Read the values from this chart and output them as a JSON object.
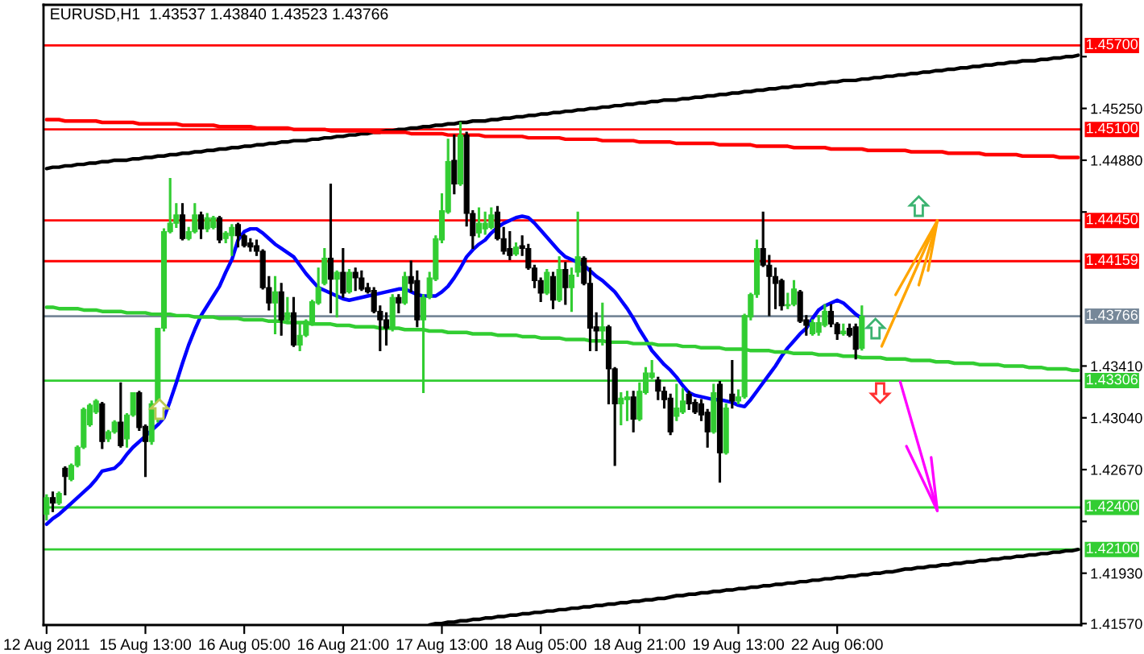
{
  "chart_data": {
    "type": "candlestick",
    "title": "EURUSD,H1  1.43537 1.43840 1.43523 1.43766",
    "categories": [
      "12 Aug 2011",
      null,
      null,
      null,
      null,
      null,
      null,
      null,
      null,
      null,
      null,
      null,
      null,
      null,
      null,
      null,
      "15 Aug 13:00",
      null,
      null,
      null,
      null,
      null,
      null,
      null,
      null,
      null,
      null,
      null,
      null,
      null,
      null,
      null,
      "16 Aug 05:00",
      null,
      null,
      null,
      null,
      null,
      null,
      null,
      null,
      null,
      null,
      null,
      null,
      null,
      null,
      null,
      "16 Aug 21:00",
      null,
      null,
      null,
      null,
      null,
      null,
      null,
      null,
      null,
      null,
      null,
      null,
      null,
      null,
      null,
      "17 Aug 13:00",
      null,
      null,
      null,
      null,
      null,
      null,
      null,
      null,
      null,
      null,
      null,
      null,
      null,
      null,
      null,
      "18 Aug 05:00",
      null,
      null,
      null,
      null,
      null,
      null,
      null,
      null,
      null,
      null,
      null,
      null,
      null,
      null,
      null,
      "18 Aug 21:00",
      null,
      null,
      null,
      null,
      null,
      null,
      null,
      null,
      null,
      null,
      null,
      null,
      null,
      null,
      null,
      "19 Aug 13:00",
      null,
      null,
      null,
      null,
      null,
      null,
      null,
      null,
      null,
      null,
      null,
      null,
      null,
      null,
      null,
      "22 Aug 06:00",
      null,
      null,
      null,
      null,
      null,
      null,
      null,
      null,
      null,
      null,
      null,
      null,
      null,
      null,
      null,
      null,
      null,
      null,
      null,
      null,
      null,
      null,
      null,
      null,
      null,
      null,
      null,
      null,
      null,
      null,
      null,
      null,
      null,
      null,
      null,
      null,
      null,
      null,
      null
    ],
    "ylim": [
      1.4156,
      1.4599
    ],
    "yticks": [
      {
        "value": 1.4157,
        "label": "1.41570"
      },
      {
        "value": 1.4193,
        "label": "1.41930"
      },
      {
        "value": 1.423,
        "label": null
      },
      {
        "value": 1.4267,
        "label": "1.42670"
      },
      {
        "value": 1.4304,
        "label": "1.43040"
      },
      {
        "value": 1.4341,
        "label": "1.43410"
      },
      {
        "value": 1.4451,
        "label": null
      },
      {
        "value": 1.4488,
        "label": "1.44880"
      },
      {
        "value": 1.4525,
        "label": "1.45250"
      },
      {
        "value": 1.4562,
        "label": null
      }
    ],
    "ohlc": [
      [
        1.4235,
        1.4249,
        1.4231,
        1.4247
      ],
      [
        1.4247,
        1.4251,
        1.4237,
        1.4243
      ],
      [
        1.4243,
        1.4251,
        1.4242,
        1.425
      ],
      [
        1.4268,
        1.4269,
        1.4249,
        1.4262
      ],
      [
        1.426,
        1.4271,
        1.4259,
        1.427
      ],
      [
        1.427,
        1.4284,
        1.4269,
        1.4283
      ],
      [
        1.4283,
        1.4311,
        1.4282,
        1.431
      ],
      [
        1.4299,
        1.4314,
        1.4298,
        1.4313
      ],
      [
        1.4308,
        1.4317,
        1.4307,
        1.4316
      ],
      [
        1.4314,
        1.4315,
        1.4282,
        1.4287
      ],
      [
        1.4289,
        1.4295,
        1.4287,
        1.4294
      ],
      [
        1.4294,
        1.4302,
        1.4293,
        1.4301
      ],
      [
        1.4301,
        1.4329,
        1.4283,
        1.4284
      ],
      [
        1.4289,
        1.4307,
        1.4283,
        1.4306
      ],
      [
        1.4306,
        1.4322,
        1.4305,
        1.4322
      ],
      [
        1.4322,
        1.4323,
        1.4295,
        1.4297
      ],
      [
        1.4298,
        1.4299,
        1.4262,
        1.4287
      ],
      [
        1.4287,
        1.4316,
        1.4285,
        1.4314
      ],
      [
        1.4305,
        1.4368,
        1.4301,
        1.4368
      ],
      [
        1.4368,
        1.4439,
        1.4366,
        1.4437
      ],
      [
        1.4437,
        1.4475,
        1.4436,
        1.4443
      ],
      [
        1.4443,
        1.4457,
        1.444,
        1.4449
      ],
      [
        1.4449,
        1.4457,
        1.4431,
        1.4432
      ],
      [
        1.4432,
        1.444,
        1.4431,
        1.4437
      ],
      [
        1.4437,
        1.4457,
        1.4436,
        1.4449
      ],
      [
        1.4449,
        1.4451,
        1.4432,
        1.4439
      ],
      [
        1.4439,
        1.445,
        1.4437,
        1.4447
      ],
      [
        1.444,
        1.4448,
        1.4439,
        1.4447
      ],
      [
        1.4447,
        1.4448,
        1.4429,
        1.4431
      ],
      [
        1.4432,
        1.4437,
        1.4429,
        1.4436
      ],
      [
        1.4434,
        1.4442,
        1.442,
        1.444
      ],
      [
        1.4442,
        1.4443,
        1.4426,
        1.4434
      ],
      [
        1.4434,
        1.4435,
        1.4426,
        1.4427
      ],
      [
        1.4429,
        1.4432,
        1.4423,
        1.4426
      ],
      [
        1.4427,
        1.4431,
        1.442,
        1.4423
      ],
      [
        1.4423,
        1.4424,
        1.4396,
        1.4397
      ],
      [
        1.4397,
        1.4405,
        1.4381,
        1.4386
      ],
      [
        1.4386,
        1.4405,
        1.4364,
        1.4394
      ],
      [
        1.4394,
        1.44,
        1.4363,
        1.4374
      ],
      [
        1.4374,
        1.439,
        1.4373,
        1.4379
      ],
      [
        1.4379,
        1.439,
        1.4355,
        1.4356
      ],
      [
        1.4356,
        1.4371,
        1.4352,
        1.4363
      ],
      [
        1.4363,
        1.4374,
        1.4362,
        1.4373
      ],
      [
        1.4371,
        1.4388,
        1.437,
        1.4387
      ],
      [
        1.4386,
        1.4411,
        1.4385,
        1.4397
      ],
      [
        1.44,
        1.4425,
        1.4399,
        1.4418
      ],
      [
        1.4418,
        1.4471,
        1.4379,
        1.4403
      ],
      [
        1.4403,
        1.4409,
        1.4376,
        1.4408
      ],
      [
        1.4408,
        1.4425,
        1.439,
        1.4393
      ],
      [
        1.4394,
        1.441,
        1.4393,
        1.4408
      ],
      [
        1.4408,
        1.4411,
        1.4395,
        1.4404
      ],
      [
        1.4404,
        1.4409,
        1.4395,
        1.4396
      ],
      [
        1.4397,
        1.44,
        1.4393,
        1.4394
      ],
      [
        1.4395,
        1.4397,
        1.4379,
        1.438
      ],
      [
        1.438,
        1.4384,
        1.4352,
        1.4374
      ],
      [
        1.4374,
        1.4379,
        1.4356,
        1.4368
      ],
      [
        1.4368,
        1.4392,
        1.4366,
        1.439
      ],
      [
        1.439,
        1.4392,
        1.4379,
        1.4386
      ],
      [
        1.4386,
        1.4408,
        1.4385,
        1.4405
      ],
      [
        1.4405,
        1.4416,
        1.4394,
        1.44
      ],
      [
        1.4402,
        1.4409,
        1.4369,
        1.4374
      ],
      [
        1.4374,
        1.4392,
        1.4322,
        1.439
      ],
      [
        1.439,
        1.4408,
        1.4389,
        1.4404
      ],
      [
        1.4403,
        1.4434,
        1.4402,
        1.4432
      ],
      [
        1.4431,
        1.4464,
        1.4429,
        1.4452
      ],
      [
        1.4451,
        1.4503,
        1.445,
        1.4487
      ],
      [
        1.4488,
        1.4506,
        1.4464,
        1.4471
      ],
      [
        1.4471,
        1.4515,
        1.447,
        1.4506
      ],
      [
        1.4506,
        1.4508,
        1.4441,
        1.445
      ],
      [
        1.445,
        1.4452,
        1.4425,
        1.4434
      ],
      [
        1.4436,
        1.4454,
        1.4433,
        1.4443
      ],
      [
        1.4439,
        1.4451,
        1.4435,
        1.4443
      ],
      [
        1.444,
        1.4454,
        1.4439,
        1.4449
      ],
      [
        1.4451,
        1.4455,
        1.4431,
        1.4432
      ],
      [
        1.4432,
        1.444,
        1.4421,
        1.4423
      ],
      [
        1.4425,
        1.4437,
        1.4417,
        1.442
      ],
      [
        1.4421,
        1.4429,
        1.442,
        1.4426
      ],
      [
        1.4427,
        1.4434,
        1.442,
        1.4425
      ],
      [
        1.4425,
        1.4428,
        1.441,
        1.4411
      ],
      [
        1.4411,
        1.4413,
        1.4397,
        1.4402
      ],
      [
        1.4402,
        1.4404,
        1.4387,
        1.4393
      ],
      [
        1.4393,
        1.441,
        1.4392,
        1.4408
      ],
      [
        1.4405,
        1.4408,
        1.4382,
        1.4388
      ],
      [
        1.4388,
        1.4419,
        1.4387,
        1.441
      ],
      [
        1.441,
        1.4415,
        1.4385,
        1.4397
      ],
      [
        1.4397,
        1.4411,
        1.438,
        1.4406
      ],
      [
        1.4408,
        1.4451,
        1.4405,
        1.4419
      ],
      [
        1.4418,
        1.4419,
        1.4399,
        1.44
      ],
      [
        1.44,
        1.4411,
        1.4352,
        1.4368
      ],
      [
        1.4369,
        1.4379,
        1.4352,
        1.4366
      ],
      [
        1.4366,
        1.4386,
        1.4356,
        1.4369
      ],
      [
        1.4369,
        1.437,
        1.4314,
        1.4339
      ],
      [
        1.4339,
        1.434,
        1.427,
        1.4314
      ],
      [
        1.4314,
        1.4322,
        1.4299,
        1.4318
      ],
      [
        1.4317,
        1.4323,
        1.4302,
        1.4319
      ],
      [
        1.4319,
        1.4323,
        1.4294,
        1.4303
      ],
      [
        1.4303,
        1.4329,
        1.4302,
        1.4323
      ],
      [
        1.4322,
        1.434,
        1.4321,
        1.4336
      ],
      [
        1.4333,
        1.4345,
        1.4332,
        1.4336
      ],
      [
        1.4331,
        1.4333,
        1.4317,
        1.4323
      ],
      [
        1.4323,
        1.4326,
        1.4311,
        1.4317
      ],
      [
        1.4318,
        1.4321,
        1.4292,
        1.4294
      ],
      [
        1.4305,
        1.4328,
        1.4302,
        1.4311
      ],
      [
        1.4308,
        1.4325,
        1.4307,
        1.4316
      ],
      [
        1.4321,
        1.4323,
        1.431,
        1.4314
      ],
      [
        1.4315,
        1.4317,
        1.4307,
        1.4308
      ],
      [
        1.4314,
        1.4317,
        1.4302,
        1.4306
      ],
      [
        1.4308,
        1.431,
        1.4283,
        1.4294
      ],
      [
        1.4294,
        1.4328,
        1.4293,
        1.4322
      ],
      [
        1.4328,
        1.433,
        1.4258,
        1.4279
      ],
      [
        1.4279,
        1.4314,
        1.4278,
        1.4311
      ],
      [
        1.4321,
        1.4345,
        1.4311,
        1.4316
      ],
      [
        1.4316,
        1.4324,
        1.4314,
        1.4319
      ],
      [
        1.4319,
        1.4378,
        1.4318,
        1.4377
      ],
      [
        1.4376,
        1.4393,
        1.4374,
        1.4392
      ],
      [
        1.4392,
        1.4431,
        1.439,
        1.4425
      ],
      [
        1.4425,
        1.4451,
        1.4412,
        1.4413
      ],
      [
        1.4413,
        1.442,
        1.4377,
        1.4405
      ],
      [
        1.4405,
        1.4411,
        1.4382,
        1.44
      ],
      [
        1.4402,
        1.4403,
        1.4381,
        1.4384
      ],
      [
        1.4384,
        1.4393,
        1.4382,
        1.4385
      ],
      [
        1.4385,
        1.4402,
        1.4384,
        1.4396
      ],
      [
        1.4394,
        1.4395,
        1.4372,
        1.4373
      ],
      [
        1.4374,
        1.4377,
        1.4363,
        1.437
      ],
      [
        1.4364,
        1.4374,
        1.4363,
        1.4372
      ],
      [
        1.4365,
        1.4377,
        1.4363,
        1.4372
      ],
      [
        1.437,
        1.4385,
        1.4369,
        1.438
      ],
      [
        1.438,
        1.4385,
        1.4369,
        1.4371
      ],
      [
        1.4371,
        1.4372,
        1.436,
        1.4364
      ],
      [
        1.4364,
        1.4371,
        1.4363,
        1.4366
      ],
      [
        1.4368,
        1.4371,
        1.4362,
        1.4363
      ],
      [
        1.4369,
        1.4371,
        1.4346,
        1.4353
      ],
      [
        1.43537,
        1.4384,
        1.43523,
        1.43766
      ],
      null,
      null,
      null,
      null,
      null,
      null,
      null,
      null,
      null,
      null,
      null,
      null,
      null,
      null,
      null,
      null,
      null,
      null,
      null,
      null,
      null,
      null,
      null,
      null,
      null,
      null,
      null,
      null,
      null,
      null,
      null,
      null,
      null,
      null,
      null
    ],
    "colors": [
      "#32cd32",
      "#000000",
      "#32cd32",
      "#000000",
      "#32cd32",
      "#32cd32",
      "#32cd32",
      "#32cd32",
      "#32cd32",
      "#000000",
      "#32cd32",
      "#32cd32",
      "#000000",
      "#32cd32",
      "#32cd32",
      "#000000",
      "#000000",
      "#32cd32",
      "#32cd32",
      "#32cd32",
      "#32cd32",
      "#32cd32",
      "#000000",
      "#32cd32",
      "#32cd32",
      "#000000",
      "#32cd32",
      "#32cd32",
      "#000000",
      "#32cd32",
      "#32cd32",
      "#000000",
      "#000000",
      "#000000",
      "#000000",
      "#000000",
      "#000000",
      "#32cd32",
      "#000000",
      "#32cd32",
      "#000000",
      "#32cd32",
      "#32cd32",
      "#32cd32",
      "#32cd32",
      "#32cd32",
      "#000000",
      "#32cd32",
      "#000000",
      "#32cd32",
      "#000000",
      "#000000",
      "#000000",
      "#000000",
      "#000000",
      "#000000",
      "#32cd32",
      "#000000",
      "#32cd32",
      "#000000",
      "#000000",
      "#32cd32",
      "#32cd32",
      "#32cd32",
      "#32cd32",
      "#32cd32",
      "#000000",
      "#32cd32",
      "#000000",
      "#000000",
      "#32cd32",
      "#32cd32",
      "#32cd32",
      "#000000",
      "#000000",
      "#000000",
      "#32cd32",
      "#000000",
      "#000000",
      "#000000",
      "#000000",
      "#32cd32",
      "#000000",
      "#32cd32",
      "#000000",
      "#32cd32",
      "#32cd32",
      "#000000",
      "#000000",
      "#000000",
      "#32cd32",
      "#000000",
      "#000000",
      "#32cd32",
      "#32cd32",
      "#000000",
      "#32cd32",
      "#32cd32",
      "#32cd32",
      "#000000",
      "#000000",
      "#000000",
      "#32cd32",
      "#32cd32",
      "#000000",
      "#000000",
      "#000000",
      "#000000",
      "#32cd32",
      "#000000",
      "#32cd32",
      "#000000",
      "#32cd32",
      "#32cd32",
      "#32cd32",
      "#32cd32",
      "#000000",
      "#000000",
      "#000000",
      "#000000",
      "#32cd32",
      "#32cd32",
      "#000000",
      "#000000",
      "#32cd32",
      "#32cd32",
      "#32cd32",
      "#000000",
      "#000000",
      "#32cd32",
      "#000000",
      "#000000",
      "#32cd32",
      null,
      null,
      null,
      null,
      null,
      null,
      null,
      null,
      null,
      null,
      null,
      null,
      null,
      null,
      null,
      null,
      null,
      null,
      null,
      null,
      null,
      null,
      null,
      null,
      null,
      null,
      null,
      null,
      null,
      null,
      null,
      null,
      null,
      null,
      null
    ],
    "series": [
      {
        "type": "line",
        "color": "#0000ff",
        "values": [
          1.4228,
          1.4232,
          1.4235,
          1.4239,
          1.4243,
          1.4247,
          1.4251,
          1.4255,
          1.426,
          1.4266,
          1.4267,
          1.4268,
          1.4272,
          1.4278,
          1.4283,
          1.4287,
          1.4291,
          1.4295,
          1.4299,
          1.4304,
          1.4316,
          1.4329,
          1.4343,
          1.4356,
          1.4367,
          1.4377,
          1.4384,
          1.4391,
          1.4398,
          1.4408,
          1.4417,
          1.4431,
          1.4437,
          1.4439,
          1.4439,
          1.4436,
          1.4432,
          1.4428,
          1.4425,
          1.4422,
          1.4419,
          1.4413,
          1.4407,
          1.4402,
          1.4397,
          1.4395,
          1.4393,
          1.4391,
          1.4389,
          1.4388,
          1.4389,
          1.439,
          1.4391,
          1.4392,
          1.4393,
          1.4394,
          1.4395,
          1.4396,
          1.4396,
          1.4394,
          1.4392,
          1.4391,
          1.4391,
          1.4391,
          1.4394,
          1.4398,
          1.4404,
          1.4411,
          1.4419,
          1.4424,
          1.4428,
          1.4431,
          1.4436,
          1.444,
          1.4443,
          1.4445,
          1.4447,
          1.4448,
          1.4447,
          1.4443,
          1.4438,
          1.4433,
          1.4428,
          1.4423,
          1.4419,
          1.4417,
          1.4415,
          1.4413,
          1.4409,
          1.4405,
          1.4402,
          1.4398,
          1.4394,
          1.4388,
          1.4382,
          1.4375,
          1.4367,
          1.436,
          1.4352,
          1.4347,
          1.4342,
          1.4338,
          1.4333,
          1.4327,
          1.4322,
          1.432,
          1.4319,
          1.4318,
          1.4317,
          1.4317,
          1.4316,
          1.4315,
          1.4313,
          1.4312,
          1.4317,
          1.4323,
          1.4329,
          1.4335,
          1.4341,
          1.4348,
          1.4354,
          1.4359,
          1.4364,
          1.4368,
          1.4375,
          1.4381,
          1.4384,
          1.4386,
          1.4388,
          1.4386,
          1.4382,
          1.4378,
          1.4375,
          null,
          null,
          null,
          null,
          null,
          null,
          null,
          null,
          null,
          null,
          null,
          null,
          null,
          null,
          null,
          null,
          null,
          null,
          null,
          null,
          null,
          null,
          null,
          null,
          null,
          null,
          null,
          null,
          null,
          null,
          null,
          null,
          null,
          null,
          null
        ]
      },
      {
        "type": "line",
        "color": "#000000",
        "values": [
          1.4482,
          1.4483,
          1.4483,
          1.4484,
          1.4484,
          1.4485,
          1.4485,
          1.4486,
          1.4486,
          1.4487,
          1.4487,
          1.4488,
          1.4488,
          1.4488,
          1.4489,
          1.4489,
          1.449,
          1.449,
          1.4491,
          1.4491,
          1.4492,
          1.4492,
          1.4493,
          1.4493,
          1.4494,
          1.4494,
          1.4495,
          1.4495,
          1.4496,
          1.4496,
          1.4497,
          1.4497,
          1.4498,
          1.4498,
          1.4499,
          1.4499,
          1.45,
          1.45,
          1.4501,
          1.4501,
          1.4502,
          1.4502,
          1.4502,
          1.4503,
          1.4503,
          1.4504,
          1.4504,
          1.4505,
          1.4505,
          1.4506,
          1.4506,
          1.4507,
          1.4507,
          1.4508,
          1.4508,
          1.4509,
          1.4509,
          1.451,
          1.451,
          1.4511,
          1.4511,
          1.4512,
          1.4512,
          1.4513,
          1.4513,
          1.4514,
          1.4514,
          1.4515,
          1.4515,
          1.4516,
          1.4516,
          1.4516,
          1.4517,
          1.4517,
          1.4518,
          1.4518,
          1.4519,
          1.4519,
          1.452,
          1.452,
          1.4521,
          1.4521,
          1.4522,
          1.4522,
          1.4523,
          1.4523,
          1.4524,
          1.4524,
          1.4525,
          1.4525,
          1.4526,
          1.4526,
          1.4527,
          1.4527,
          1.4528,
          1.4528,
          1.4529,
          1.4529,
          1.453,
          1.453,
          1.4531,
          1.4531,
          1.4531,
          1.4532,
          1.4532,
          1.4533,
          1.4533,
          1.4534,
          1.4534,
          1.4535,
          1.4535,
          1.4536,
          1.4536,
          1.4537,
          1.4537,
          1.4538,
          1.4538,
          1.4539,
          1.4539,
          1.454,
          1.454,
          1.4541,
          1.4541,
          1.4542,
          1.4542,
          1.4543,
          1.4543,
          1.4544,
          1.4544,
          1.4545,
          1.4545,
          1.4545,
          1.4546,
          1.4546,
          1.4547,
          1.4547,
          1.4548,
          1.4548,
          1.4549,
          1.4549,
          1.455,
          1.455,
          1.4551,
          1.4551,
          1.4552,
          1.4552,
          1.4553,
          1.4553,
          1.4554,
          1.4554,
          1.4555,
          1.4555,
          1.4556,
          1.4556,
          1.4557,
          1.4557,
          1.4558,
          1.4558,
          1.4559,
          1.4559,
          1.4559,
          1.456,
          1.456,
          1.4561,
          1.4561,
          1.4562,
          1.4562,
          1.4563
        ]
      },
      {
        "type": "line",
        "color": "#000000",
        "values": [
          null,
          null,
          null,
          null,
          null,
          null,
          null,
          null,
          null,
          null,
          null,
          null,
          null,
          null,
          null,
          null,
          null,
          null,
          null,
          null,
          null,
          null,
          null,
          null,
          null,
          null,
          null,
          null,
          null,
          null,
          null,
          null,
          null,
          null,
          null,
          null,
          null,
          null,
          null,
          null,
          null,
          null,
          null,
          null,
          null,
          null,
          null,
          null,
          null,
          null,
          null,
          null,
          null,
          null,
          null,
          null,
          null,
          null,
          null,
          null,
          null,
          null,
          1.4156,
          1.4157,
          1.4157,
          1.4158,
          1.4158,
          1.4159,
          1.4159,
          1.416,
          1.416,
          1.4161,
          1.4161,
          1.4162,
          1.4162,
          1.4163,
          1.4163,
          1.4164,
          1.4164,
          1.4165,
          1.4165,
          1.4166,
          1.4166,
          1.4167,
          1.4167,
          1.4168,
          1.4168,
          1.4169,
          1.4169,
          1.417,
          1.417,
          1.4171,
          1.4171,
          1.4172,
          1.4172,
          1.4173,
          1.4173,
          1.4174,
          1.4174,
          1.4175,
          1.4175,
          1.4176,
          1.4177,
          1.4177,
          1.4178,
          1.4178,
          1.4179,
          1.4179,
          1.418,
          1.418,
          1.4181,
          1.4181,
          1.4182,
          1.4182,
          1.4183,
          1.4183,
          1.4184,
          1.4184,
          1.4185,
          1.4185,
          1.4186,
          1.4186,
          1.4187,
          1.4187,
          1.4188,
          1.4188,
          1.4189,
          1.4189,
          1.419,
          1.419,
          1.4191,
          1.4191,
          1.4192,
          1.4192,
          1.4193,
          1.4193,
          1.4194,
          1.4194,
          1.4195,
          1.4196,
          1.4196,
          1.4197,
          1.4197,
          1.4198,
          1.4198,
          1.4199,
          1.4199,
          1.42,
          1.42,
          1.4201,
          1.4201,
          1.4202,
          1.4202,
          1.4203,
          1.4203,
          1.4204,
          1.4204,
          1.4205,
          1.4205,
          1.4206,
          1.4206,
          1.4207,
          1.4207,
          1.4208,
          1.4208,
          1.4209,
          1.4209,
          1.421
        ]
      },
      {
        "type": "line",
        "color": "#ff0000",
        "values": [
          1.4517,
          1.4517,
          1.4517,
          1.4516,
          1.4516,
          1.4516,
          1.4516,
          1.4516,
          1.4516,
          1.4515,
          1.4515,
          1.4515,
          1.4515,
          1.4515,
          1.4515,
          1.4514,
          1.4514,
          1.4514,
          1.4514,
          1.4514,
          1.4514,
          1.4514,
          1.4513,
          1.4513,
          1.4513,
          1.4513,
          1.4513,
          1.4513,
          1.4512,
          1.4512,
          1.4512,
          1.4512,
          1.4512,
          1.4512,
          1.4511,
          1.4511,
          1.4511,
          1.4511,
          1.4511,
          1.4511,
          1.451,
          1.451,
          1.451,
          1.451,
          1.451,
          1.451,
          1.4509,
          1.4509,
          1.4509,
          1.4509,
          1.4509,
          1.4509,
          1.4509,
          1.4508,
          1.4508,
          1.4508,
          1.4508,
          1.4508,
          1.4508,
          1.4507,
          1.4507,
          1.4507,
          1.4507,
          1.4507,
          1.4507,
          1.4506,
          1.4506,
          1.4506,
          1.4506,
          1.4506,
          1.4506,
          1.4505,
          1.4505,
          1.4505,
          1.4505,
          1.4505,
          1.4505,
          1.4505,
          1.4504,
          1.4504,
          1.4504,
          1.4504,
          1.4504,
          1.4504,
          1.4503,
          1.4503,
          1.4503,
          1.4503,
          1.4503,
          1.4503,
          1.4502,
          1.4502,
          1.4502,
          1.4502,
          1.4502,
          1.4502,
          1.4501,
          1.4501,
          1.4501,
          1.4501,
          1.4501,
          1.4501,
          1.45,
          1.45,
          1.45,
          1.45,
          1.45,
          1.45,
          1.45,
          1.4499,
          1.4499,
          1.4499,
          1.4499,
          1.4499,
          1.4499,
          1.4498,
          1.4498,
          1.4498,
          1.4498,
          1.4498,
          1.4498,
          1.4497,
          1.4497,
          1.4497,
          1.4497,
          1.4497,
          1.4497,
          1.4496,
          1.4496,
          1.4496,
          1.4496,
          1.4496,
          1.4496,
          1.4495,
          1.4495,
          1.4495,
          1.4495,
          1.4495,
          1.4495,
          1.4495,
          1.4494,
          1.4494,
          1.4494,
          1.4494,
          1.4494,
          1.4494,
          1.4493,
          1.4493,
          1.4493,
          1.4493,
          1.4493,
          1.4493,
          1.4492,
          1.4492,
          1.4492,
          1.4492,
          1.4492,
          1.4492,
          1.4491,
          1.4491,
          1.4491,
          1.4491,
          1.4491,
          1.4491,
          1.449,
          1.449,
          1.449,
          1.449
        ]
      },
      {
        "type": "line",
        "color": "#32cd32",
        "values": [
          1.4383,
          1.4383,
          1.4382,
          1.4382,
          1.4382,
          1.4382,
          1.4381,
          1.4381,
          1.4381,
          1.438,
          1.438,
          1.438,
          1.438,
          1.4379,
          1.4379,
          1.4379,
          1.4379,
          1.4378,
          1.4378,
          1.4378,
          1.4378,
          1.4377,
          1.4377,
          1.4377,
          1.4376,
          1.4376,
          1.4376,
          1.4376,
          1.4375,
          1.4375,
          1.4375,
          1.4375,
          1.4374,
          1.4374,
          1.4374,
          1.4374,
          1.4373,
          1.4373,
          1.4373,
          1.4372,
          1.4372,
          1.4372,
          1.4372,
          1.4371,
          1.4371,
          1.4371,
          1.4371,
          1.437,
          1.437,
          1.437,
          1.4369,
          1.4369,
          1.4369,
          1.4369,
          1.4368,
          1.4368,
          1.4368,
          1.4368,
          1.4367,
          1.4367,
          1.4367,
          1.4367,
          1.4366,
          1.4366,
          1.4366,
          1.4365,
          1.4365,
          1.4365,
          1.4365,
          1.4364,
          1.4364,
          1.4364,
          1.4364,
          1.4363,
          1.4363,
          1.4363,
          1.4363,
          1.4362,
          1.4362,
          1.4362,
          1.4361,
          1.4361,
          1.4361,
          1.4361,
          1.436,
          1.436,
          1.436,
          1.436,
          1.4359,
          1.4359,
          1.4359,
          1.4358,
          1.4358,
          1.4358,
          1.4358,
          1.4357,
          1.4357,
          1.4357,
          1.4357,
          1.4356,
          1.4356,
          1.4356,
          1.4356,
          1.4355,
          1.4355,
          1.4355,
          1.4354,
          1.4354,
          1.4354,
          1.4354,
          1.4353,
          1.4353,
          1.4353,
          1.4353,
          1.4352,
          1.4352,
          1.4352,
          1.4352,
          1.4351,
          1.4351,
          1.4351,
          1.435,
          1.435,
          1.435,
          1.435,
          1.4349,
          1.4349,
          1.4349,
          1.4349,
          1.4348,
          1.4348,
          1.4348,
          1.4347,
          1.4347,
          1.4347,
          1.4347,
          1.4346,
          1.4346,
          1.4346,
          1.4346,
          1.4345,
          1.4345,
          1.4345,
          1.4345,
          1.4344,
          1.4344,
          1.4344,
          1.4343,
          1.4343,
          1.4343,
          1.4343,
          1.4342,
          1.4342,
          1.4342,
          1.4342,
          1.4341,
          1.4341,
          1.4341,
          1.4341,
          1.434,
          1.434,
          1.434,
          1.4339,
          1.4339,
          1.4339,
          1.4339,
          1.4338,
          1.4338
        ]
      }
    ],
    "ref_lines": [
      {
        "axis": "y",
        "value": 1.457,
        "label": "1.45700",
        "color": "#ff0000"
      },
      {
        "axis": "y",
        "value": 1.451,
        "label": "1.45100",
        "color": "#ff0000"
      },
      {
        "axis": "y",
        "value": 1.4445,
        "label": "1.44450",
        "color": "#ff0000"
      },
      {
        "axis": "y",
        "value": 1.44159,
        "label": "1.44159",
        "color": "#ff0000"
      },
      {
        "axis": "y",
        "value": 1.43766,
        "label": "1.43766",
        "color": "#778899"
      },
      {
        "axis": "y",
        "value": 1.43306,
        "label": "1.43306",
        "color": "#32cd32"
      },
      {
        "axis": "y",
        "value": 1.424,
        "label": "1.42400",
        "color": "#32cd32"
      },
      {
        "axis": "y",
        "value": 1.421,
        "label": "1.42100",
        "color": "#32cd32"
      }
    ]
  }
}
